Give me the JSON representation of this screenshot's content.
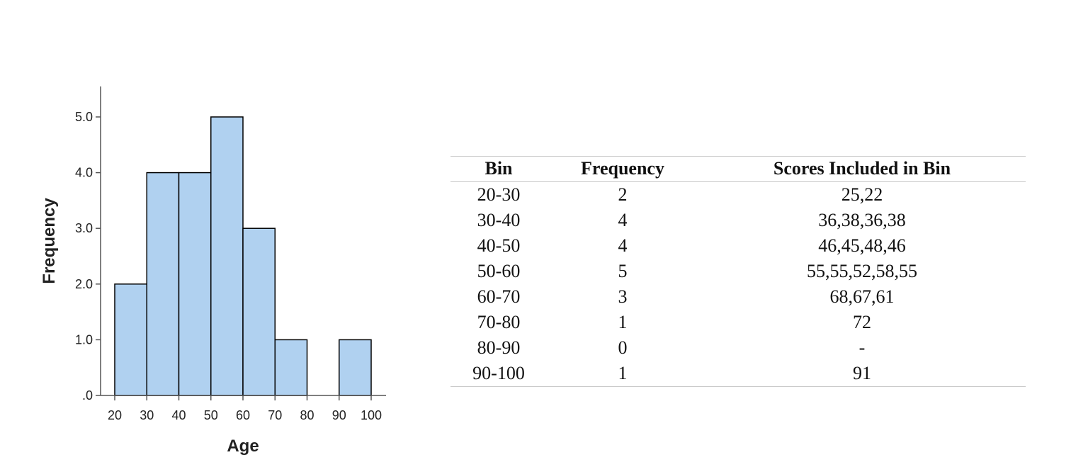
{
  "chart_data": {
    "type": "bar",
    "xlabel": "Age",
    "ylabel": "Frequency",
    "x_ticks": [
      "20",
      "30",
      "40",
      "50",
      "60",
      "70",
      "80",
      "90",
      "100"
    ],
    "y_ticks": [
      ".0",
      "1.0",
      "2.0",
      "3.0",
      "4.0",
      "5.0"
    ],
    "bins": [
      {
        "from": 20,
        "to": 30,
        "value": 2
      },
      {
        "from": 30,
        "to": 40,
        "value": 4
      },
      {
        "from": 40,
        "to": 50,
        "value": 4
      },
      {
        "from": 50,
        "to": 60,
        "value": 5
      },
      {
        "from": 60,
        "to": 70,
        "value": 3
      },
      {
        "from": 70,
        "to": 80,
        "value": 1
      },
      {
        "from": 80,
        "to": 90,
        "value": 0
      },
      {
        "from": 90,
        "to": 100,
        "value": 1
      }
    ],
    "xlim": [
      20,
      100
    ],
    "ylim": [
      0,
      5.5
    ],
    "bar_color": "#b0d1f0",
    "bar_edge_color": "#000000"
  },
  "table": {
    "headers": [
      "Bin",
      "Frequency",
      "Scores Included in Bin"
    ],
    "rows": [
      [
        "20-30",
        "2",
        "25,22"
      ],
      [
        "30-40",
        "4",
        "36,38,36,38"
      ],
      [
        "40-50",
        "4",
        "46,45,48,46"
      ],
      [
        "50-60",
        "5",
        "55,55,52,58,55"
      ],
      [
        "60-70",
        "3",
        "68,67,61"
      ],
      [
        "70-80",
        "1",
        "72"
      ],
      [
        "80-90",
        "0",
        "-"
      ],
      [
        "90-100",
        "1",
        "91"
      ]
    ]
  }
}
